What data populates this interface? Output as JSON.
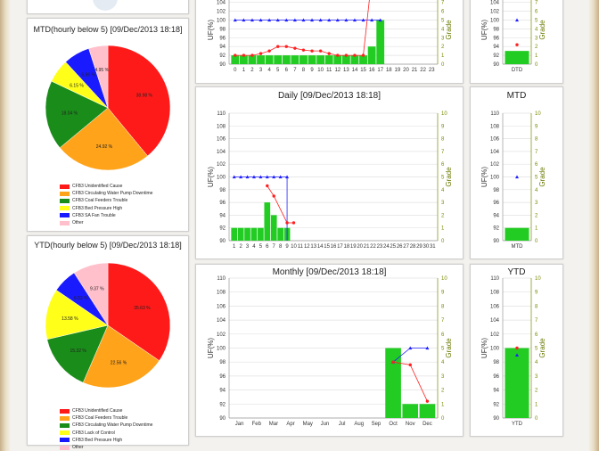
{
  "colors": {
    "bar": "#22cc22",
    "avail": "#2020ff",
    "grade": "#ff2020",
    "gradeAxis": "#7a8a00"
  },
  "mtd_pie": {
    "title": "MTD(hourly below 5) [09/Dec/2013 18:18]"
  },
  "ytd_pie": {
    "title": "YTD(hourly below 5) [09/Dec/2013 18:18]"
  },
  "daily": {
    "title": "Daily [09/Dec/2013 18:18]"
  },
  "mtd_bar": {
    "title": "MTD"
  },
  "monthly": {
    "title": "Monthly [09/Dec/2013 18:18]"
  },
  "ytd_bar": {
    "title": "YTD"
  },
  "chart_data": [
    {
      "type": "pie",
      "id": "mtd_pie",
      "slices": [
        {
          "label": "CFB3 Unidentified Cause",
          "value": 38.98,
          "text": "38.98 %",
          "color": "#ff1a1a"
        },
        {
          "label": "CFB3 Circulating Water Pump Downtime",
          "value": 24.92,
          "text": "24.92 %",
          "color": "#ffa31a"
        },
        {
          "label": "CFB3 Coal Feeders Trouble",
          "value": 18.04,
          "text": "18.04 %",
          "color": "#1a8c1a"
        },
        {
          "label": "CFB3 Bed Pressure High",
          "value": 6.15,
          "text": "6.15 %",
          "color": "#ffff1a"
        },
        {
          "label": "CFB3 SA Fan Trouble",
          "value": 6.86,
          "text": "6.86 %",
          "color": "#1a1aff"
        },
        {
          "label": "Other",
          "value": 4.95,
          "text": "4.95 %",
          "color": "#ffc0cb"
        }
      ]
    },
    {
      "type": "pie",
      "id": "ytd_pie",
      "slices": [
        {
          "label": "CFB3 Unidentified Cause",
          "value": 35.63,
          "text": "35.63 %",
          "color": "#ff1a1a"
        },
        {
          "label": "CFB3 Coal Feeders Trouble",
          "value": 22.56,
          "text": "22.56 %",
          "color": "#ffa31a"
        },
        {
          "label": "CFB3 Circulating Water Pump Downtime",
          "value": 15.32,
          "text": "15.32 %",
          "color": "#1a8c1a"
        },
        {
          "label": "CFB3 Lack of Control",
          "value": 13.58,
          "text": "13.58 %",
          "color": "#ffff1a"
        },
        {
          "label": "CFB3 Bed Pressure High",
          "value": 6.53,
          "text": "6.53 %",
          "color": "#1a1aff"
        },
        {
          "label": "Other",
          "value": 9.37,
          "text": "9.37 %",
          "color": "#ffc0cb"
        }
      ]
    },
    {
      "type": "bar",
      "id": "hourly",
      "ylabel": "UF(%)",
      "y2label": "Grade",
      "ylim": [
        90,
        110
      ],
      "y2lim": [
        0,
        10
      ],
      "categories": [
        "0",
        "1",
        "2",
        "3",
        "4",
        "5",
        "6",
        "7",
        "8",
        "9",
        "10",
        "11",
        "12",
        "13",
        "14",
        "15",
        "16",
        "17",
        "18",
        "19",
        "20",
        "21",
        "22",
        "23"
      ],
      "uf": [
        92,
        92,
        92,
        92,
        92,
        92,
        92,
        92,
        92,
        92,
        92,
        92,
        92,
        92,
        92,
        92,
        94,
        100,
        90,
        90,
        90,
        90,
        90,
        90
      ],
      "avail": [
        100,
        100,
        100,
        100,
        100,
        100,
        100,
        100,
        100,
        100,
        100,
        100,
        100,
        100,
        100,
        100,
        100,
        100,
        null,
        null,
        null,
        null,
        null,
        null
      ],
      "grade": [
        1,
        1,
        1,
        1.2,
        1.5,
        2,
        2,
        1.8,
        1.6,
        1.5,
        1.5,
        1.2,
        1,
        1,
        1,
        1,
        9.8,
        10,
        null,
        null,
        null,
        null,
        null,
        null
      ]
    },
    {
      "type": "bar",
      "id": "dtd",
      "ylabel": "UF(%)",
      "y2label": "Grade",
      "ylim": [
        90,
        110
      ],
      "y2lim": [
        0,
        10
      ],
      "categories": [
        "DTD"
      ],
      "uf": [
        93
      ],
      "avail": [
        100
      ],
      "grade": [
        2.2
      ]
    },
    {
      "type": "bar",
      "id": "daily",
      "ylabel": "UF(%)",
      "y2label": "Grade",
      "ylim": [
        90,
        110
      ],
      "y2lim": [
        0,
        10
      ],
      "categories": [
        "1",
        "2",
        "3",
        "4",
        "5",
        "6",
        "7",
        "8",
        "9",
        "10",
        "11",
        "12",
        "13",
        "14",
        "15",
        "16",
        "17",
        "18",
        "19",
        "20",
        "21",
        "22",
        "23",
        "24",
        "25",
        "26",
        "27",
        "28",
        "29",
        "30",
        "31"
      ],
      "uf": [
        92,
        92,
        92,
        92,
        92,
        96,
        94,
        92,
        92,
        90,
        90,
        90,
        90,
        90,
        90,
        90,
        90,
        90,
        90,
        90,
        90,
        90,
        90,
        90,
        90,
        90,
        90,
        90,
        90,
        90,
        90
      ],
      "avail": [
        100,
        100,
        100,
        100,
        100,
        100,
        100,
        100,
        100,
        null,
        null,
        null,
        null,
        null,
        null,
        null,
        null,
        null,
        null,
        null,
        null,
        null,
        null,
        null,
        null,
        null,
        null,
        null,
        null,
        null,
        null
      ],
      "grade": [
        null,
        null,
        null,
        null,
        null,
        4.3,
        3.5,
        null,
        1.4,
        1.4,
        null,
        null,
        null,
        null,
        null,
        null,
        null,
        null,
        null,
        null,
        null,
        null,
        null,
        null,
        null,
        null,
        null,
        null,
        null,
        null,
        null
      ]
    },
    {
      "type": "bar",
      "id": "mtd_bar",
      "ylabel": "UF(%)",
      "y2label": "Grade",
      "ylim": [
        90,
        110
      ],
      "y2lim": [
        0,
        10
      ],
      "categories": [
        "MTD"
      ],
      "uf": [
        92
      ],
      "avail": [
        100
      ],
      "grade": [
        null
      ]
    },
    {
      "type": "bar",
      "id": "monthly",
      "ylabel": "UF(%)",
      "y2label": "Grade",
      "ylim": [
        90,
        110
      ],
      "y2lim": [
        0,
        10
      ],
      "categories": [
        "Jan",
        "Feb",
        "Mar",
        "Apr",
        "May",
        "Jun",
        "Jul",
        "Aug",
        "Sep",
        "Oct",
        "Nov",
        "Dec"
      ],
      "uf": [
        90,
        90,
        90,
        90,
        90,
        90,
        90,
        90,
        90,
        100,
        92,
        92
      ],
      "avail": [
        null,
        null,
        null,
        null,
        null,
        null,
        null,
        null,
        null,
        98,
        100,
        100
      ],
      "grade": [
        null,
        null,
        null,
        null,
        null,
        null,
        null,
        null,
        null,
        4,
        3.8,
        1.2
      ]
    },
    {
      "type": "bar",
      "id": "ytd_bar",
      "ylabel": "UF(%)",
      "y2label": "Grade",
      "ylim": [
        90,
        110
      ],
      "y2lim": [
        0,
        10
      ],
      "categories": [
        "YTD"
      ],
      "uf": [
        100
      ],
      "avail": [
        99
      ],
      "grade": [
        5
      ]
    }
  ]
}
